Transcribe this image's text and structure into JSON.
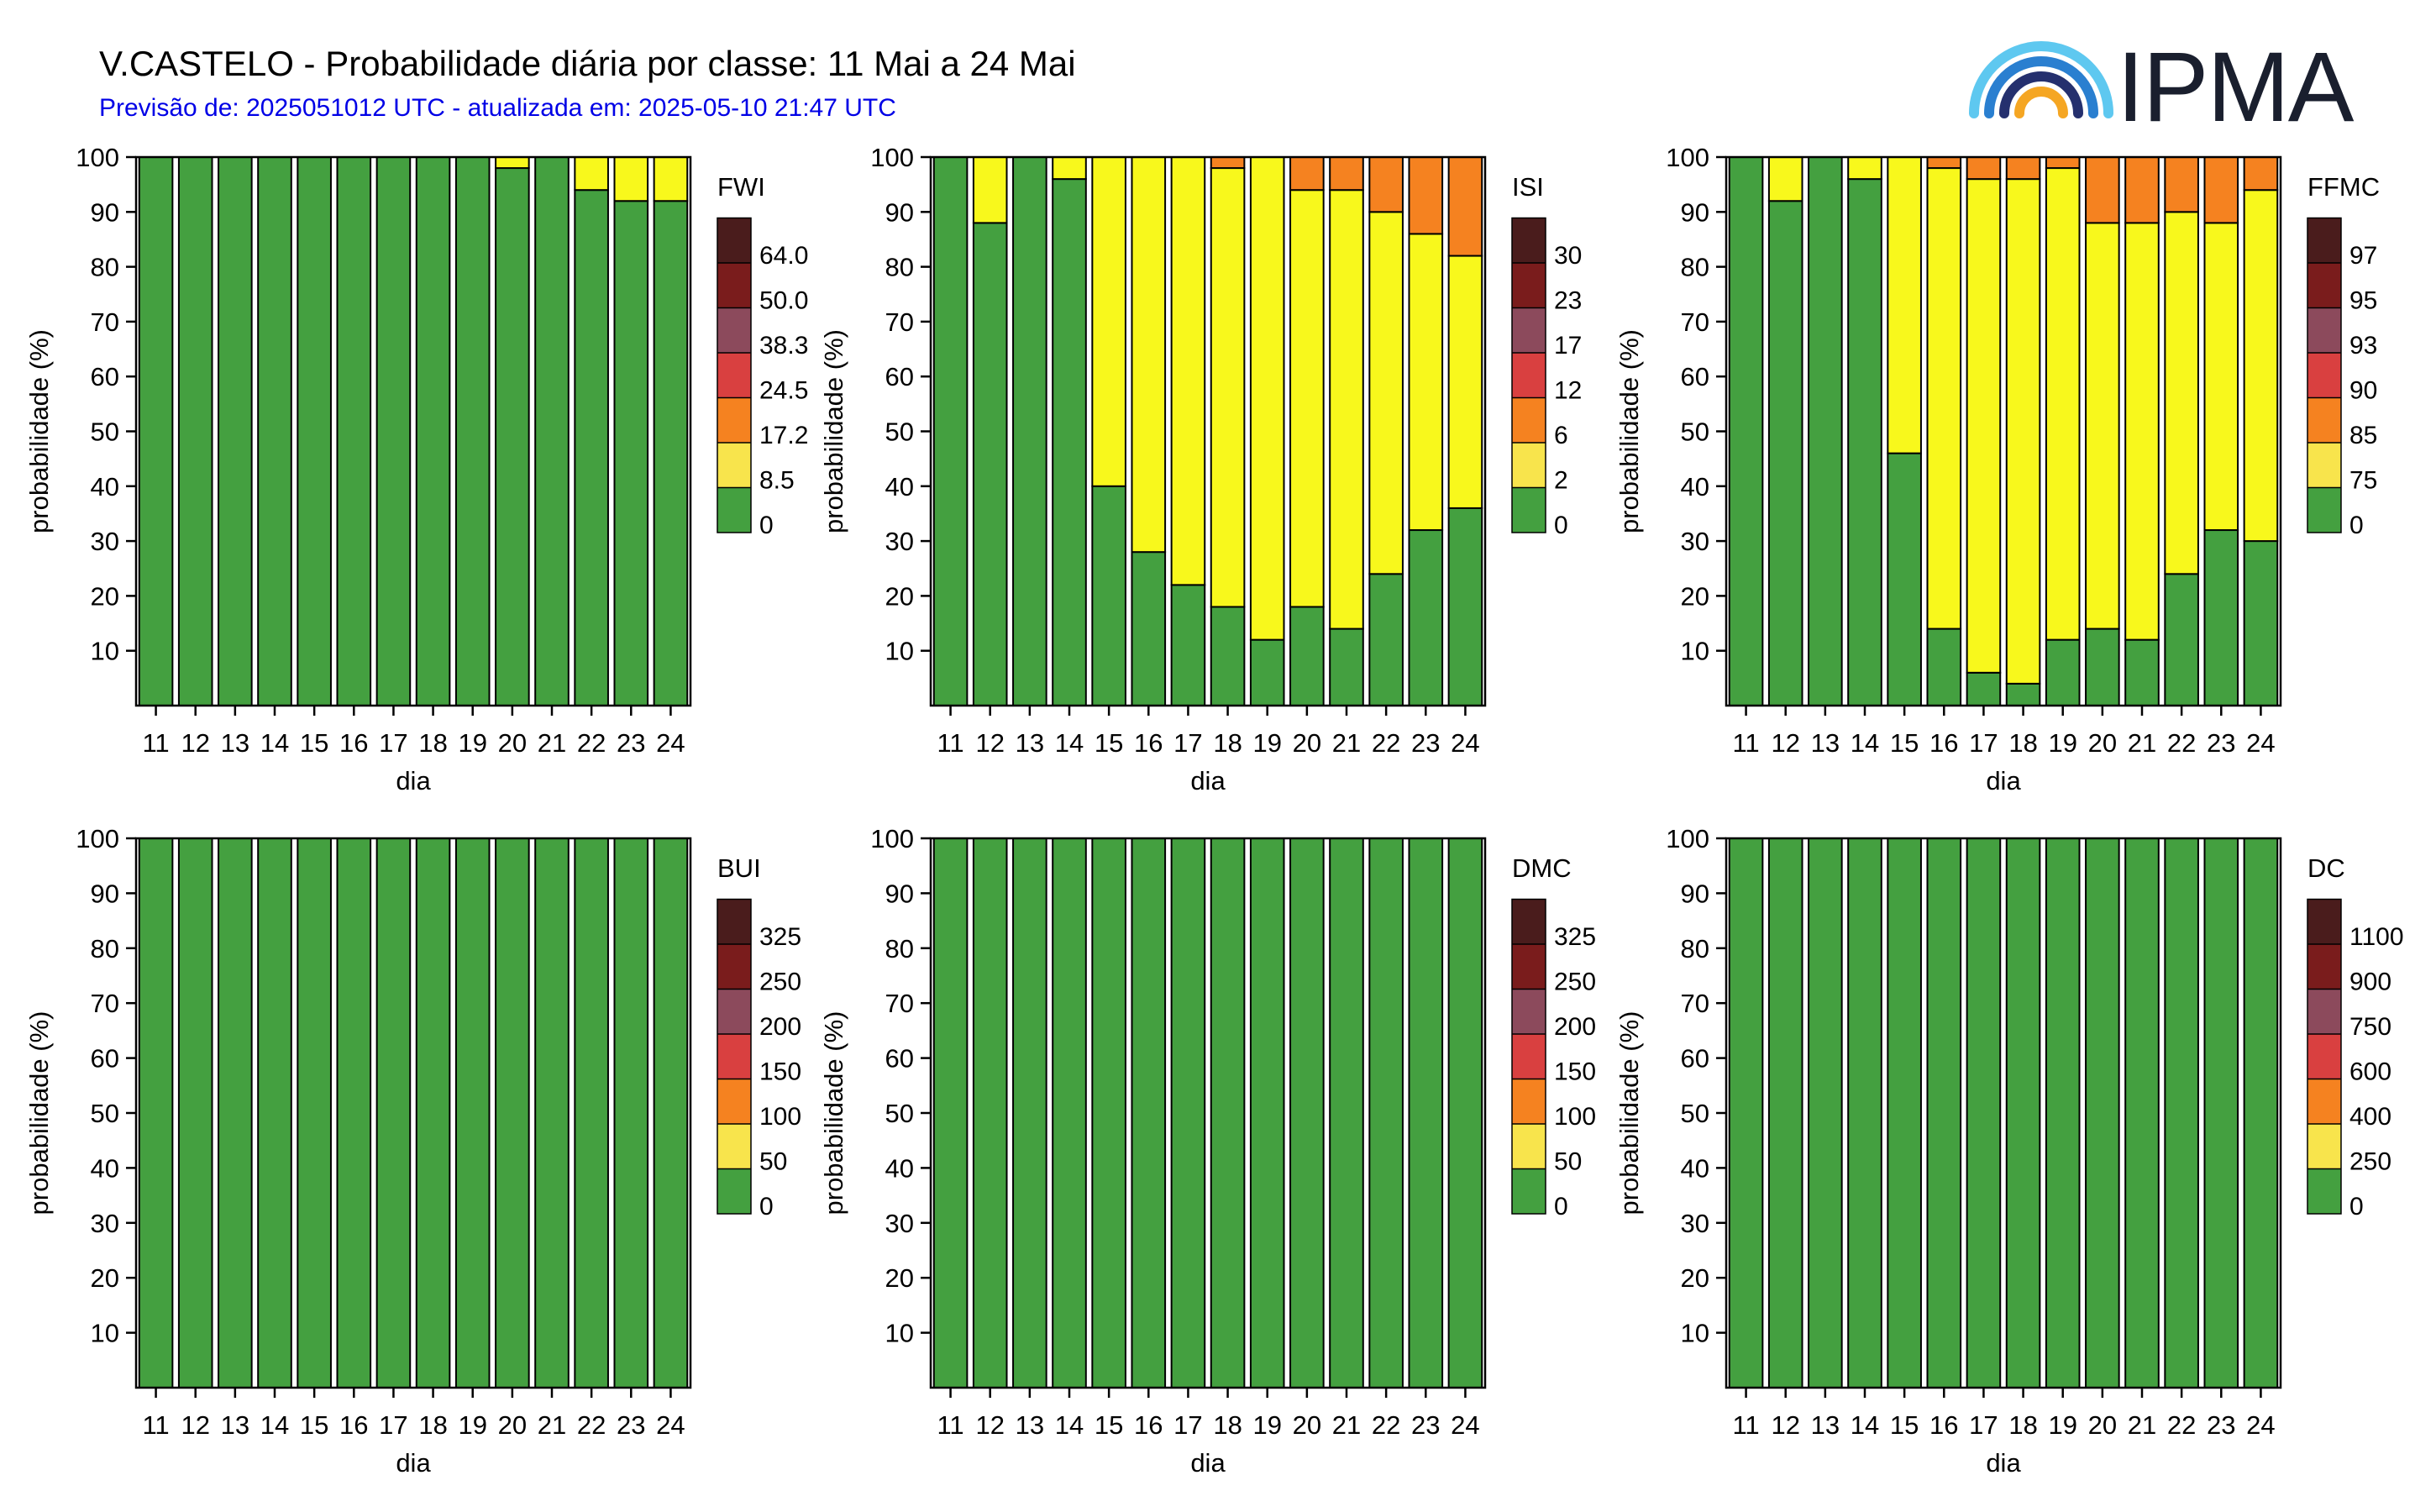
{
  "header": {
    "title": "V.CASTELO - Probabilidade diária por classe: 11 Mai a 24 Mai",
    "subtitle": "Previsão de: 2025051012 UTC - atualizada em: 2025-05-10 21:47 UTC",
    "logo_text": "IPMA"
  },
  "colors": {
    "class_colors": [
      "#44a040",
      "#f8f81c",
      "#f58220",
      "#d94040",
      "#8c4a5c",
      "#7a1c1c",
      "#4a1c1c"
    ],
    "legend_colors": [
      "#44a040",
      "#f8e44c",
      "#f58220",
      "#d94040",
      "#8c4a5c",
      "#7a1c1c",
      "#4a1c1c"
    ],
    "subtitle": "#0000e6"
  },
  "chart_data": [
    {
      "type": "bar",
      "stacked": true,
      "legend_title": "FWI",
      "legend_thresholds": [
        "0",
        "8.5",
        "17.2",
        "24.5",
        "38.3",
        "50.0",
        "64.0"
      ],
      "categories": [
        "11",
        "12",
        "13",
        "14",
        "15",
        "16",
        "17",
        "18",
        "19",
        "20",
        "21",
        "22",
        "23",
        "24"
      ],
      "xlabel": "dia",
      "ylabel": "probabilidade (%)",
      "ylim": [
        0,
        100
      ],
      "yticks": [
        10,
        20,
        30,
        40,
        50,
        60,
        70,
        80,
        90,
        100
      ],
      "series": [
        {
          "values": [
            100,
            100,
            100,
            100,
            100,
            100,
            100,
            100,
            100,
            98,
            100,
            94,
            92,
            92
          ]
        },
        {
          "values": [
            0,
            0,
            0,
            0,
            0,
            0,
            0,
            0,
            0,
            2,
            0,
            6,
            8,
            8
          ]
        }
      ]
    },
    {
      "type": "bar",
      "stacked": true,
      "legend_title": "ISI",
      "legend_thresholds": [
        "0",
        "2",
        "6",
        "12",
        "17",
        "23",
        "30"
      ],
      "categories": [
        "11",
        "12",
        "13",
        "14",
        "15",
        "16",
        "17",
        "18",
        "19",
        "20",
        "21",
        "22",
        "23",
        "24"
      ],
      "xlabel": "dia",
      "ylabel": "probabilidade (%)",
      "ylim": [
        0,
        100
      ],
      "yticks": [
        10,
        20,
        30,
        40,
        50,
        60,
        70,
        80,
        90,
        100
      ],
      "series": [
        {
          "values": [
            100,
            88,
            100,
            96,
            40,
            28,
            22,
            18,
            12,
            18,
            14,
            24,
            32,
            36
          ]
        },
        {
          "values": [
            0,
            12,
            0,
            4,
            60,
            72,
            78,
            80,
            88,
            76,
            80,
            66,
            54,
            46
          ]
        },
        {
          "values": [
            0,
            0,
            0,
            0,
            0,
            0,
            0,
            2,
            0,
            6,
            6,
            10,
            14,
            18
          ]
        }
      ]
    },
    {
      "type": "bar",
      "stacked": true,
      "legend_title": "FFMC",
      "legend_thresholds": [
        "0",
        "75",
        "85",
        "90",
        "93",
        "95",
        "97"
      ],
      "categories": [
        "11",
        "12",
        "13",
        "14",
        "15",
        "16",
        "17",
        "18",
        "19",
        "20",
        "21",
        "22",
        "23",
        "24"
      ],
      "xlabel": "dia",
      "ylabel": "probabilidade (%)",
      "ylim": [
        0,
        100
      ],
      "yticks": [
        10,
        20,
        30,
        40,
        50,
        60,
        70,
        80,
        90,
        100
      ],
      "series": [
        {
          "values": [
            100,
            92,
            100,
            96,
            46,
            14,
            6,
            4,
            12,
            14,
            12,
            24,
            32,
            30
          ]
        },
        {
          "values": [
            0,
            8,
            0,
            4,
            54,
            84,
            90,
            92,
            86,
            74,
            76,
            66,
            56,
            64
          ]
        },
        {
          "values": [
            0,
            0,
            0,
            0,
            0,
            2,
            4,
            4,
            2,
            12,
            12,
            10,
            12,
            6
          ]
        }
      ]
    },
    {
      "type": "bar",
      "stacked": true,
      "legend_title": "BUI",
      "legend_thresholds": [
        "0",
        "50",
        "100",
        "150",
        "200",
        "250",
        "325"
      ],
      "categories": [
        "11",
        "12",
        "13",
        "14",
        "15",
        "16",
        "17",
        "18",
        "19",
        "20",
        "21",
        "22",
        "23",
        "24"
      ],
      "xlabel": "dia",
      "ylabel": "probabilidade (%)",
      "ylim": [
        0,
        100
      ],
      "yticks": [
        10,
        20,
        30,
        40,
        50,
        60,
        70,
        80,
        90,
        100
      ],
      "series": [
        {
          "values": [
            100,
            100,
            100,
            100,
            100,
            100,
            100,
            100,
            100,
            100,
            100,
            100,
            100,
            100
          ]
        }
      ]
    },
    {
      "type": "bar",
      "stacked": true,
      "legend_title": "DMC",
      "legend_thresholds": [
        "0",
        "50",
        "100",
        "150",
        "200",
        "250",
        "325"
      ],
      "categories": [
        "11",
        "12",
        "13",
        "14",
        "15",
        "16",
        "17",
        "18",
        "19",
        "20",
        "21",
        "22",
        "23",
        "24"
      ],
      "xlabel": "dia",
      "ylabel": "probabilidade (%)",
      "ylim": [
        0,
        100
      ],
      "yticks": [
        10,
        20,
        30,
        40,
        50,
        60,
        70,
        80,
        90,
        100
      ],
      "series": [
        {
          "values": [
            100,
            100,
            100,
            100,
            100,
            100,
            100,
            100,
            100,
            100,
            100,
            100,
            100,
            100
          ]
        }
      ]
    },
    {
      "type": "bar",
      "stacked": true,
      "legend_title": "DC",
      "legend_thresholds": [
        "0",
        "250",
        "400",
        "600",
        "750",
        "900",
        "1100"
      ],
      "categories": [
        "11",
        "12",
        "13",
        "14",
        "15",
        "16",
        "17",
        "18",
        "19",
        "20",
        "21",
        "22",
        "23",
        "24"
      ],
      "xlabel": "dia",
      "ylabel": "probabilidade (%)",
      "ylim": [
        0,
        100
      ],
      "yticks": [
        10,
        20,
        30,
        40,
        50,
        60,
        70,
        80,
        90,
        100
      ],
      "series": [
        {
          "values": [
            100,
            100,
            100,
            100,
            100,
            100,
            100,
            100,
            100,
            100,
            100,
            100,
            100,
            100
          ]
        }
      ]
    }
  ]
}
